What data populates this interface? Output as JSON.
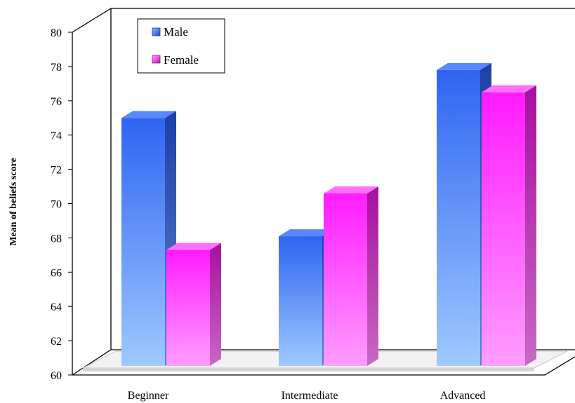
{
  "chart_data": {
    "type": "bar",
    "title": "",
    "xlabel": "",
    "ylabel": "Mean of beliefs score",
    "categories": [
      "Beginner",
      "Intermediate",
      "Advanced"
    ],
    "series": [
      {
        "name": "Male",
        "values": [
          75.2,
          68.3,
          78.0
        ],
        "color": "#3b6ff5"
      },
      {
        "name": "Female",
        "values": [
          67.5,
          70.8,
          76.7
        ],
        "color": "#ff33ff"
      }
    ],
    "ylim": [
      60,
      80
    ],
    "yticks": [
      "60",
      "62",
      "64",
      "66",
      "68",
      "70",
      "72",
      "74",
      "76",
      "78",
      "80"
    ],
    "legend_position": "top-left",
    "grid": false
  }
}
